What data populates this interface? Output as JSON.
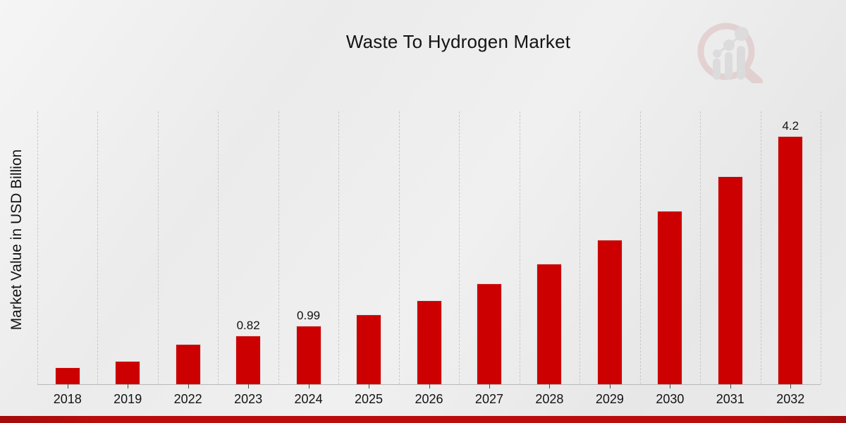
{
  "title": "Waste To Hydrogen Market",
  "y_axis_label": "Market Value in USD Billion",
  "colors": {
    "bar": "#cc0000",
    "bar_edge": "#dedede",
    "bottom_strip": "#bb0d0d",
    "gridline": "#c9c9c9",
    "axis_line": "#b9b9b9",
    "text": "#131313",
    "watermark_ring": "#ddbcbc",
    "watermark_bars": "#cfcfcf"
  },
  "watermark_icon": "magnifier-bar-chart-logo",
  "chart_data": {
    "type": "bar",
    "title": "Waste To Hydrogen Market",
    "xlabel": "",
    "ylabel": "Market Value in USD Billion",
    "categories": [
      "2018",
      "2019",
      "2022",
      "2023",
      "2024",
      "2025",
      "2026",
      "2027",
      "2028",
      "2029",
      "2030",
      "2031",
      "2032"
    ],
    "values": [
      0.29,
      0.4,
      0.68,
      0.82,
      0.99,
      1.18,
      1.42,
      1.71,
      2.04,
      2.45,
      2.94,
      3.52,
      4.2
    ],
    "bar_labels": [
      "",
      "",
      "",
      "0.82",
      "0.99",
      "",
      "",
      "",
      "",
      "",
      "",
      "",
      "4.2"
    ],
    "ylim": [
      0,
      4.62
    ],
    "grid": "vertical-dashed",
    "legend": "none",
    "bar_color": "#cc0000"
  }
}
